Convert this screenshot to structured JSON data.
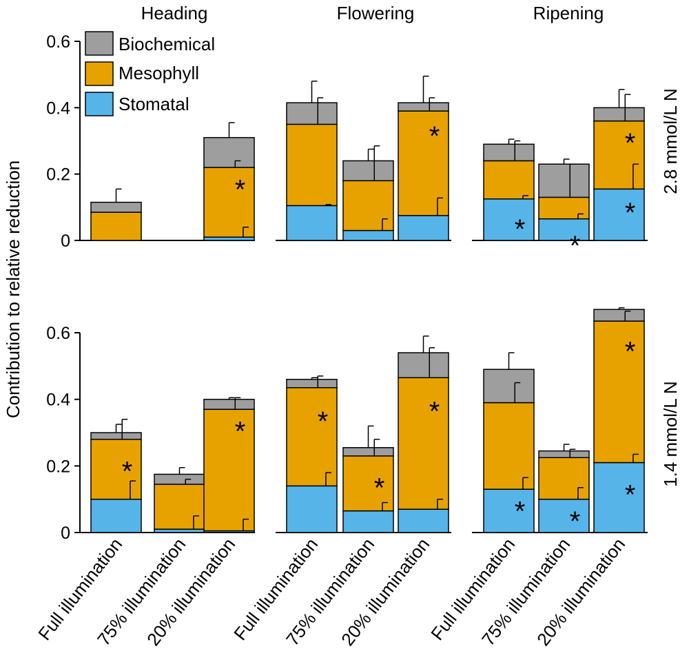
{
  "chart_data": {
    "type": "bar",
    "stacked": true,
    "ylabel": "Contribution to relative reduction",
    "stages": [
      "Heading",
      "Flowering",
      "Ripening"
    ],
    "categories": [
      "Full illumination",
      "75% illumination",
      "20% illumination",
      "Full illumination",
      "75% illumination",
      "20% illumination",
      "Full illumination",
      "75% illumination",
      "20% illumination"
    ],
    "legend": [
      {
        "name": "Biochemical",
        "color": "#9e9e9e"
      },
      {
        "name": "Mesophyll",
        "color": "#e8a200"
      },
      {
        "name": "Stomatal",
        "color": "#56b4e9"
      }
    ],
    "colors": {
      "biochemical": "#9e9e9e",
      "mesophyll": "#e8a200",
      "stomatal": "#56b4e9"
    },
    "panels": [
      {
        "label": "2.8 mmol/L N",
        "ylim": [
          0,
          0.6
        ],
        "yticks": [
          "0",
          "0.2",
          "0.4",
          "0.6"
        ],
        "stomatal": [
          0,
          0,
          0.01,
          0.105,
          0.03,
          0.075,
          0.125,
          0.065,
          0.155
        ],
        "mesophyll": [
          0.085,
          0,
          0.21,
          0.245,
          0.15,
          0.315,
          0.115,
          0.065,
          0.205
        ],
        "biochemical": [
          0.03,
          0,
          0.09,
          0.065,
          0.06,
          0.025,
          0.05,
          0.1,
          0.04
        ],
        "err_stomatal": [
          null,
          null,
          0.04,
          0.108,
          0.065,
          0.128,
          0.135,
          0.08,
          0.23
        ],
        "err_mesophyll": [
          null,
          null,
          0.24,
          0.43,
          0.285,
          0.43,
          0.3,
          0.23,
          0.44
        ],
        "err_biochemical": [
          0.155,
          null,
          0.355,
          0.48,
          0.275,
          0.495,
          0.305,
          0.245,
          0.455
        ],
        "stars": [
          {
            "bar": 2,
            "y": 0.18,
            "text": "*"
          },
          {
            "bar": 5,
            "y": 0.34,
            "text": "*"
          },
          {
            "bar": 6,
            "y": 0.06,
            "text": "*"
          },
          {
            "bar": 7,
            "y": 0.01,
            "text": "*"
          },
          {
            "bar": 8,
            "y": 0.32,
            "text": "*"
          },
          {
            "bar": 8,
            "y": 0.11,
            "text": "*"
          }
        ]
      },
      {
        "label": "1.4 mmol/L N",
        "ylim": [
          0,
          0.6
        ],
        "yticks": [
          "0",
          "0.2",
          "0.4",
          "0.6"
        ],
        "stomatal": [
          0.1,
          0.01,
          0.005,
          0.14,
          0.065,
          0.07,
          0.13,
          0.1,
          0.21
        ],
        "mesophyll": [
          0.18,
          0.135,
          0.365,
          0.295,
          0.165,
          0.395,
          0.26,
          0.125,
          0.425
        ],
        "biochemical": [
          0.02,
          0.03,
          0.03,
          0.025,
          0.025,
          0.075,
          0.1,
          0.02,
          0.035
        ],
        "err_stomatal": [
          0.155,
          0.05,
          0.04,
          0.18,
          0.09,
          0.1,
          0.165,
          0.135,
          0.235
        ],
        "err_mesophyll": [
          0.34,
          0.16,
          0.405,
          0.47,
          0.28,
          0.555,
          0.45,
          0.25,
          0.665
        ],
        "err_biochemical": [
          0.325,
          0.195,
          0.405,
          0.465,
          0.32,
          0.59,
          0.54,
          0.265,
          0.675
        ],
        "stars": [
          {
            "bar": 0,
            "y": 0.21,
            "text": "*"
          },
          {
            "bar": 2,
            "y": 0.33,
            "text": "*"
          },
          {
            "bar": 3,
            "y": 0.36,
            "text": "*"
          },
          {
            "bar": 4,
            "y": 0.16,
            "text": "*"
          },
          {
            "bar": 5,
            "y": 0.39,
            "text": "*"
          },
          {
            "bar": 6,
            "y": 0.09,
            "text": "*"
          },
          {
            "bar": 7,
            "y": 0.06,
            "text": "*"
          },
          {
            "bar": 8,
            "y": 0.57,
            "text": "*"
          },
          {
            "bar": 8,
            "y": 0.14,
            "text": "*"
          }
        ]
      }
    ]
  }
}
